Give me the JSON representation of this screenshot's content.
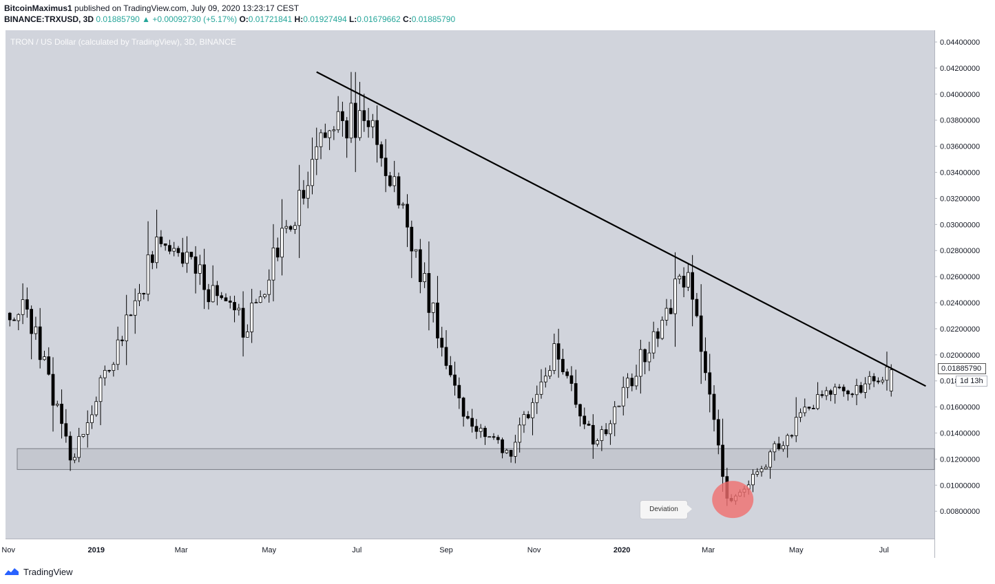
{
  "header": {
    "author": "BitcoinMaximus1",
    "published": "published on TradingView.com, July 09, 2020 13:23:17 CEST",
    "symbol": "BINANCE:TRXUSD, 3D",
    "last": "0.01885790",
    "change": "+0.00092730 (+5.17%)",
    "o_label": "O:",
    "o": "0.01721841",
    "h_label": "H:",
    "h": "0.01927494",
    "l_label": "L:",
    "l": "0.01679662",
    "c_label": "C:",
    "c": "0.01885790"
  },
  "legend": "TRON / US Dollar (calculated by TradingView), 3D, BINANCE",
  "price_label": {
    "value": "0.01885790",
    "countdown": "1d 13h"
  },
  "annotation": {
    "text": "Deviation"
  },
  "footer": {
    "brand": "TradingView"
  },
  "colors": {
    "panel_bg": "#d1d4dc",
    "up_fill": "#ffffff",
    "down_fill": "#000000",
    "wick": "#000000",
    "trendline": "#000000",
    "support_band": "#c4c7cf",
    "highlight": "#f06e6e"
  },
  "chart_data": {
    "type": "candlestick",
    "title": "TRON / US Dollar (calculated by TradingView), 3D, BINANCE",
    "y_axis": {
      "ylim": [
        0.0059,
        0.0449
      ],
      "ticks": [
        "0.00800000",
        "0.01000000",
        "0.01200000",
        "0.01400000",
        "0.01600000",
        "0.01800000",
        "0.02000000",
        "0.02200000",
        "0.02400000",
        "0.02600000",
        "0.02800000",
        "0.03000000",
        "0.03200000",
        "0.03400000",
        "0.03600000",
        "0.03800000",
        "0.04000000",
        "0.04200000",
        "0.04400000"
      ]
    },
    "x_axis": {
      "ticks": [
        "Nov",
        "2019",
        "Mar",
        "May",
        "Jul",
        "Sep",
        "Nov",
        "2020",
        "Mar",
        "May",
        "Jul"
      ]
    },
    "support_zone": [
      0.0112,
      0.0128
    ],
    "trendline": {
      "from": [
        "2019-06-03",
        0.0417
      ],
      "to": [
        "2020-07-30",
        0.0176
      ]
    },
    "key_points": [
      {
        "date": "2018-11",
        "price": 0.0232
      },
      {
        "date": "2018-12",
        "price": 0.012
      },
      {
        "date": "2019-02",
        "price": 0.029
      },
      {
        "date": "2019-04",
        "price": 0.022
      },
      {
        "date": "2019-06",
        "price": 0.0382
      },
      {
        "date": "2019-07",
        "price": 0.037
      },
      {
        "date": "2019-09",
        "price": 0.015
      },
      {
        "date": "2019-10",
        "price": 0.0125
      },
      {
        "date": "2019-11",
        "price": 0.02
      },
      {
        "date": "2019-12",
        "price": 0.013
      },
      {
        "date": "2020-02",
        "price": 0.0265
      },
      {
        "date": "2020-03",
        "price": 0.0085
      },
      {
        "date": "2020-05",
        "price": 0.0165
      },
      {
        "date": "2020-07",
        "price": 0.0189
      }
    ],
    "last_candle": {
      "open": 0.01721841,
      "high": 0.01927494,
      "low": 0.01679662,
      "close": 0.0188579
    }
  }
}
